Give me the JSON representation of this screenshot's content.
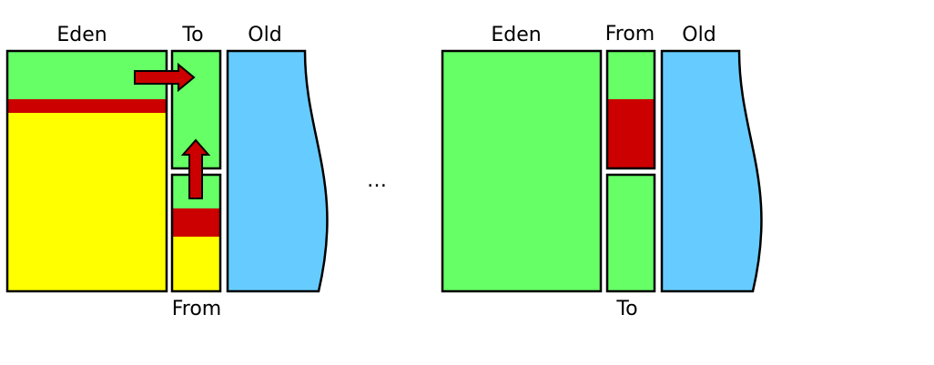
{
  "colors": {
    "young_free": "#66ff66",
    "survivor_live": "#cc0000",
    "garbage": "#ffff00",
    "old_gen": "#66ccff",
    "outline": "#000000",
    "arrow": "#cc0000"
  },
  "before": {
    "label_eden": "Eden",
    "label_to": "To",
    "label_old": "Old",
    "label_from": "From"
  },
  "ellipsis": "…",
  "after": {
    "label_eden": "Eden",
    "label_from": "From",
    "label_old": "Old",
    "label_to": "To"
  }
}
